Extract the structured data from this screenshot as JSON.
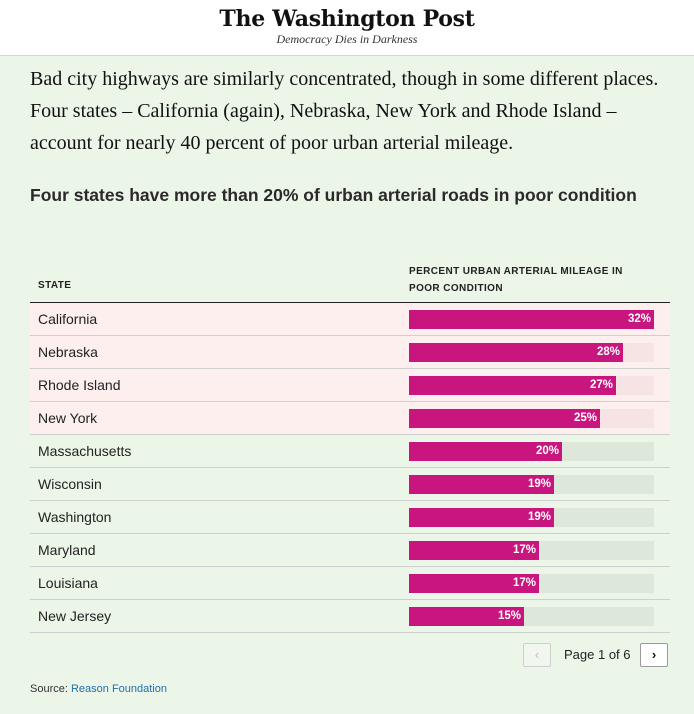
{
  "masthead": {
    "logo": "The Washington Post",
    "tagline": "Democracy Dies in Darkness"
  },
  "lede": "Bad city highways are similarly concentrated, though in some different places. Four states – California (again), Nebraska, New York and Rhode Island – account for nearly 40 percent of poor urban arterial mileage.",
  "chart_data": {
    "type": "table",
    "title": "Four states have more than 20% of urban arterial roads in poor condition",
    "columns": [
      "STATE",
      "PERCENT URBAN ARTERIAL MILEAGE IN POOR CONDITION"
    ],
    "rows": [
      {
        "state": "California",
        "value": 32,
        "label": "32%",
        "highlight": true
      },
      {
        "state": "Nebraska",
        "value": 28,
        "label": "28%",
        "highlight": true
      },
      {
        "state": "Rhode Island",
        "value": 27,
        "label": "27%",
        "highlight": true
      },
      {
        "state": "New York",
        "value": 25,
        "label": "25%",
        "highlight": true
      },
      {
        "state": "Massachusetts",
        "value": 20,
        "label": "20%",
        "highlight": false
      },
      {
        "state": "Wisconsin",
        "value": 19,
        "label": "19%",
        "highlight": false
      },
      {
        "state": "Washington",
        "value": 19,
        "label": "19%",
        "highlight": false
      },
      {
        "state": "Maryland",
        "value": 17,
        "label": "17%",
        "highlight": false
      },
      {
        "state": "Louisiana",
        "value": 17,
        "label": "17%",
        "highlight": false
      },
      {
        "state": "New Jersey",
        "value": 15,
        "label": "15%",
        "highlight": false
      }
    ],
    "xlim": [
      0,
      32
    ],
    "colors": {
      "bar": "#c8167e",
      "track_highlight": "#f5e4e3",
      "track_normal": "#dde8da",
      "row_highlight": "#fcefee"
    }
  },
  "pagination": {
    "prev_icon": "chevron-left-icon",
    "next_icon": "chevron-right-icon",
    "label": "Page 1 of 6"
  },
  "source": {
    "prefix": "Source: ",
    "link_text": "Reason Foundation"
  }
}
